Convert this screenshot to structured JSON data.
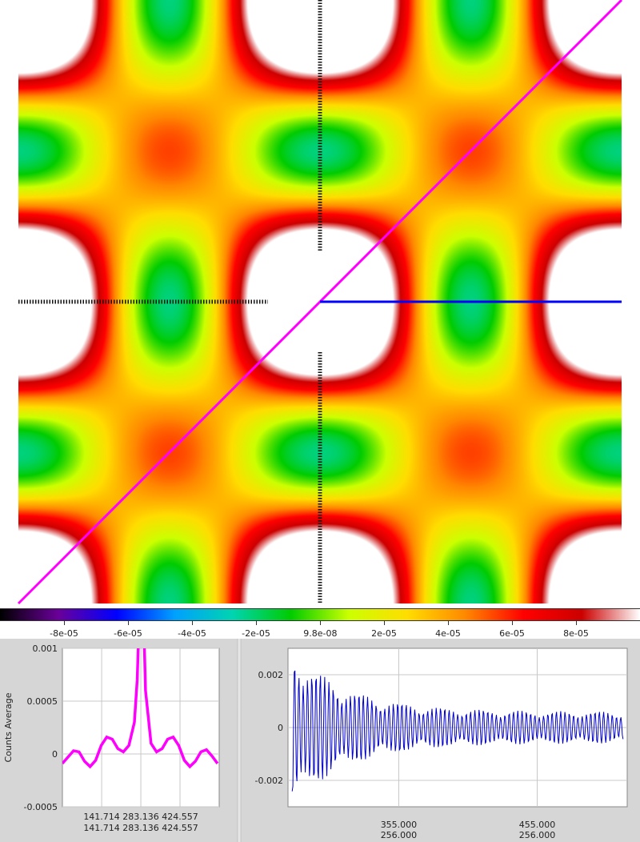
{
  "heatmap": {
    "colormap": [
      "#000000",
      "#6a0099",
      "#0000ff",
      "#00a0ff",
      "#00d4b0",
      "#00cc00",
      "#ccff00",
      "#ffdd00",
      "#ff8800",
      "#ff0000",
      "#cc0000",
      "#ffffff"
    ],
    "crosshair_color": "#ff00ff",
    "horizontal_marker_color": "#0000ff"
  },
  "colorbar": {
    "tick_labels": [
      "-8e-05",
      "-6e-05",
      "-4e-05",
      "-2e-05",
      "9.8e-08",
      "2e-05",
      "4e-05",
      "6e-05",
      "8e-05"
    ],
    "tick_values": [
      -8e-05,
      -6e-05,
      -4e-05,
      -2e-05,
      9.8e-08,
      2e-05,
      4e-05,
      6e-05,
      8e-05
    ],
    "range": [
      -0.0001,
      0.0001
    ]
  },
  "chart_data": [
    {
      "type": "line",
      "name": "left-profile",
      "ylabel": "Counts Average",
      "ylim": [
        -0.0005,
        0.001
      ],
      "y_ticks": [
        -0.0005,
        0,
        0.0005,
        0.001
      ],
      "y_tick_labels": [
        "-0.0005",
        "0",
        "0.0005",
        "0.001"
      ],
      "x_tick_labels_row1": [
        "141.714",
        "283.136",
        "424.557"
      ],
      "x_tick_labels_row2": [
        "141.714",
        "283.136",
        "424.557"
      ],
      "x_ticks": [
        141.714,
        283.136,
        424.557
      ],
      "xlim": [
        0,
        566
      ],
      "color": "#ff00ff",
      "series": [
        {
          "x": [
            0,
            20,
            40,
            60,
            80,
            100,
            120,
            140,
            160,
            180,
            200,
            220,
            240,
            260,
            270,
            275,
            280,
            285,
            290,
            295,
            300,
            320,
            340,
            360,
            380,
            400,
            420,
            440,
            460,
            480,
            500,
            520,
            540,
            560
          ],
          "values": [
            -9e-05,
            -3e-05,
            3e-05,
            2e-05,
            -7e-05,
            -0.00012,
            -6e-05,
            8e-05,
            0.00016,
            0.00014,
            5e-05,
            2e-05,
            8e-05,
            0.0003,
            0.0007,
            0.0011,
            0.0011,
            0.0011,
            0.0011,
            0.0011,
            0.0006,
            0.0001,
            2e-05,
            5e-05,
            0.00014,
            0.00016,
            8e-05,
            -6e-05,
            -0.00012,
            -7e-05,
            2e-05,
            4e-05,
            -2e-05,
            -9e-05
          ]
        }
      ]
    },
    {
      "type": "line",
      "name": "right-profile",
      "ylim": [
        -0.003,
        0.003
      ],
      "y_ticks": [
        -0.002,
        0,
        0.002
      ],
      "y_tick_labels": [
        "-0.002",
        "0",
        "0.002"
      ],
      "x_tick_labels_row1": [
        "355.000",
        "455.000"
      ],
      "x_tick_labels_row2": [
        "256.000",
        "256.000"
      ],
      "x_ticks": [
        355,
        455
      ],
      "xlim": [
        275,
        520
      ],
      "color": "#0000cc",
      "decay_envelope": {
        "start_amplitude": 0.003,
        "end_amplitude": 0.0006,
        "period": 3.1
      }
    }
  ]
}
